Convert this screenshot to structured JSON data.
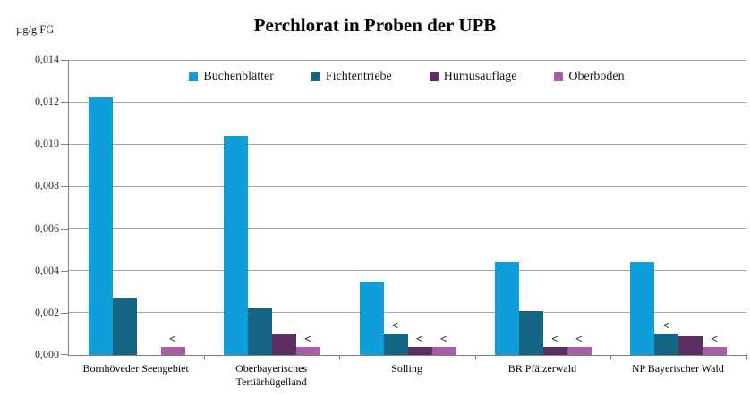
{
  "title": "Perchlorat in Proben der UPB",
  "y_axis_unit": "µg/g FG",
  "chart_data": {
    "type": "bar",
    "title": "Perchlorat in Proben der UPB",
    "ylabel": "µg/g FG",
    "xlabel": "",
    "grid": true,
    "legend_position": "top",
    "ylim": [
      0,
      0.014
    ],
    "ytick_step": 0.002,
    "ytick_labels": [
      "0,000",
      "0,002",
      "0,004",
      "0,006",
      "0,008",
      "0,010",
      "0,012",
      "0,014"
    ],
    "annotation_symbol": "<",
    "annotation_meaning": "below limit of quantification",
    "categories": [
      "Bornhöveder Seengebiet",
      "Oberbayerisches Tertiärhügelland",
      "Solling",
      "BR Pfälzerwald",
      "NP Bayerischer Wald"
    ],
    "series": [
      {
        "name": "Buchenblätter",
        "color": "#0f9ed9",
        "values": [
          0.0122,
          0.0104,
          0.0035,
          0.0044,
          0.0044
        ],
        "below_loq": [
          false,
          false,
          false,
          false,
          false
        ]
      },
      {
        "name": "Fichtentriebe",
        "color": "#156585",
        "values": [
          0.0027,
          0.0022,
          0.001,
          0.0021,
          0.001
        ],
        "below_loq": [
          false,
          false,
          true,
          false,
          true
        ]
      },
      {
        "name": "Humusauflage",
        "color": "#5c2f63",
        "values": [
          null,
          0.001,
          0.0004,
          0.0004,
          0.0009
        ],
        "below_loq": [
          false,
          false,
          true,
          true,
          false
        ]
      },
      {
        "name": "Oberboden",
        "color": "#a95ca9",
        "values": [
          0.0004,
          0.0004,
          0.0004,
          0.0004,
          0.0004
        ],
        "below_loq": [
          true,
          true,
          true,
          true,
          true
        ]
      }
    ],
    "colors": {
      "gridline": "#a3a3a3",
      "axis": "#808080",
      "text": "#1f2433",
      "title": "#000000"
    }
  }
}
